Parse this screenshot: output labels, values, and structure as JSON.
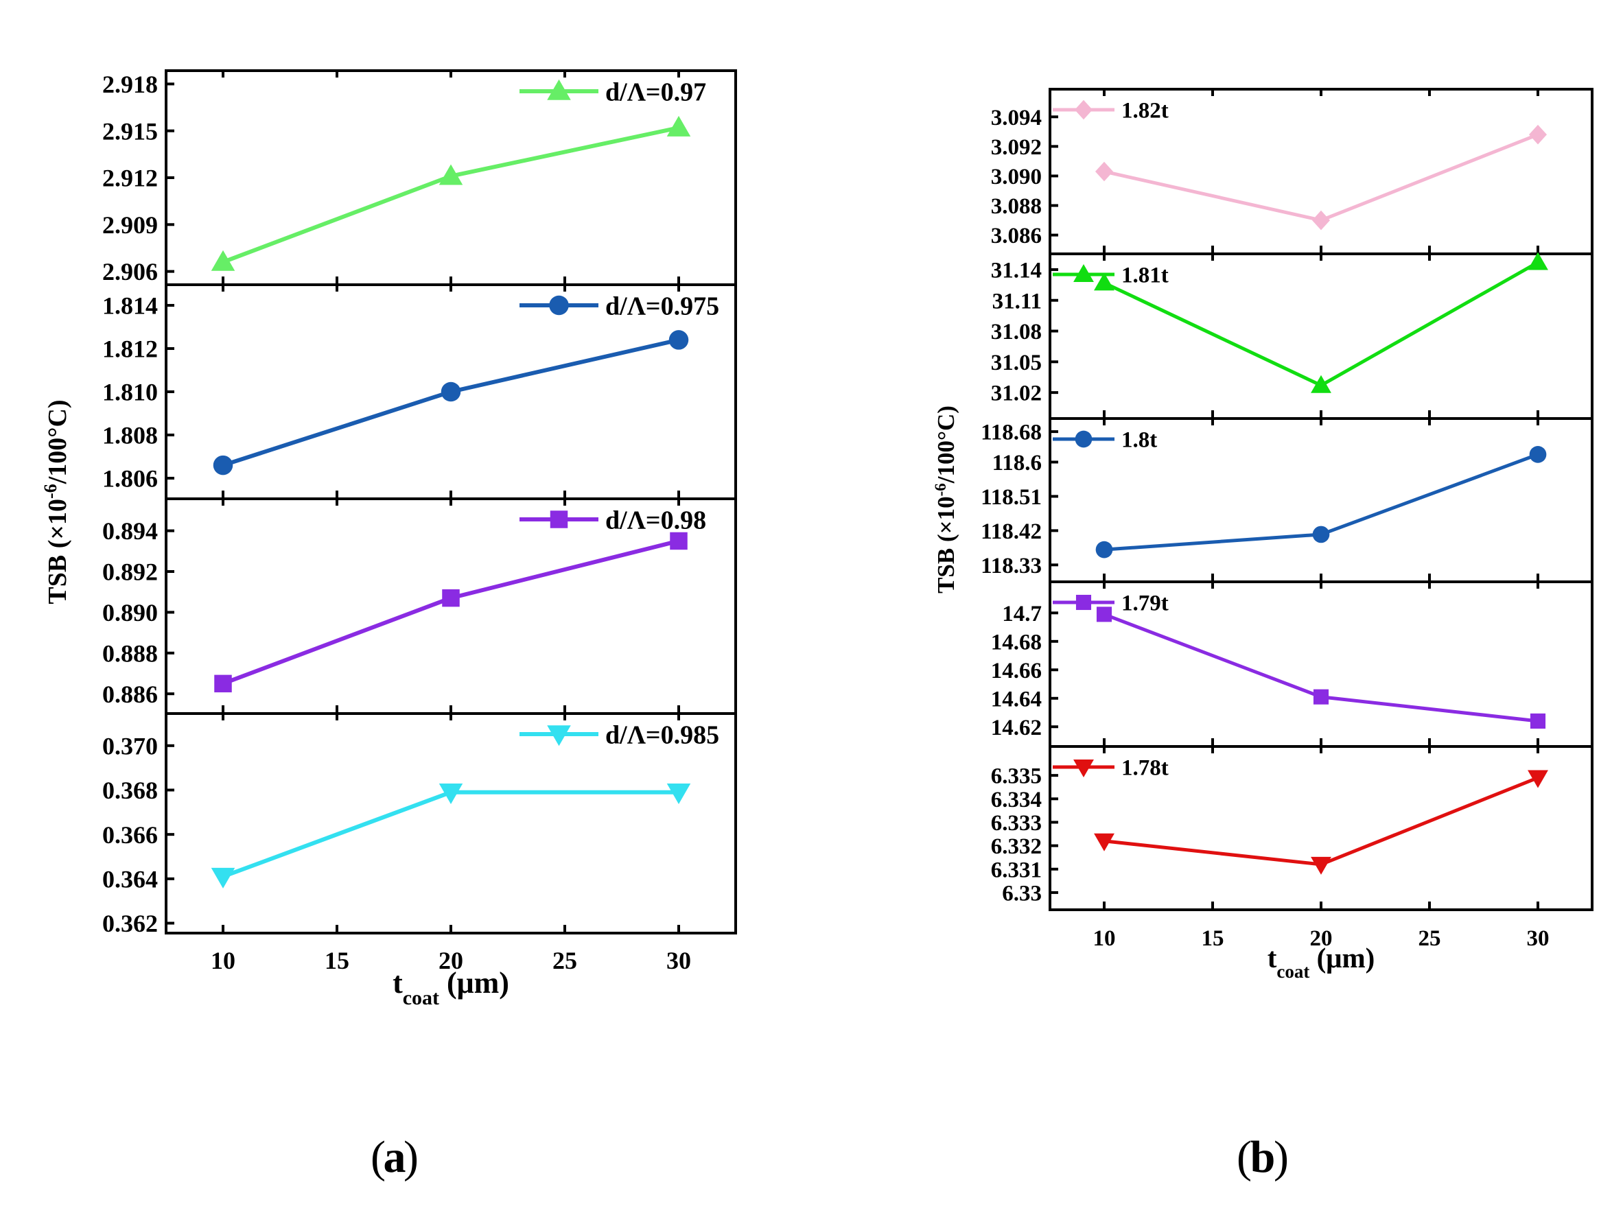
{
  "panel_labels": {
    "a": "a",
    "b": "b"
  },
  "chart_data": [
    {
      "id": "a",
      "type": "line",
      "ylabel": "TSB (×10",
      "ylabel_sup": "-6",
      "ylabel_tail": "/100°C)",
      "xlabel": "t",
      "xlabel_sub": "coat",
      "xlabel_tail": " (μm)",
      "xlim": [
        7.5,
        32.5
      ],
      "xticks": [
        10,
        15,
        20,
        25,
        30
      ],
      "xtick_labels": [
        "10",
        "15",
        "20",
        "25",
        "30"
      ],
      "x": [
        10,
        20,
        30
      ],
      "series": [
        {
          "name": "d/Λ=0.97",
          "values": [
            2.9066,
            2.9121,
            2.9152
          ],
          "color": "#66ee66",
          "marker": "triangle-up",
          "ylim": [
            2.9055,
            2.9185
          ],
          "yticks": [
            2.906,
            2.909,
            2.912,
            2.915,
            2.918
          ],
          "ytick_labels": [
            "2.906",
            "2.909",
            "2.912",
            "2.915",
            "2.918"
          ]
        },
        {
          "name": "d/Λ=0.975",
          "values": [
            1.8066,
            1.81,
            1.8124
          ],
          "color": "#1a5cb0",
          "marker": "circle",
          "ylim": [
            1.8053,
            1.8147
          ],
          "yticks": [
            1.806,
            1.808,
            1.81,
            1.812,
            1.814
          ],
          "ytick_labels": [
            "1.806",
            "1.808",
            "1.810",
            "1.812",
            "1.814"
          ]
        },
        {
          "name": "d/Λ=0.98",
          "values": [
            0.8865,
            0.8907,
            0.8935
          ],
          "color": "#8a2be2",
          "marker": "square",
          "ylim": [
            0.8853,
            0.8953
          ],
          "yticks": [
            0.886,
            0.888,
            0.89,
            0.892,
            0.894
          ],
          "ytick_labels": [
            "0.886",
            "0.888",
            "0.890",
            "0.892",
            "0.894"
          ]
        },
        {
          "name": "d/Λ=0.985",
          "values": [
            0.3641,
            0.3679,
            0.3679
          ],
          "color": "#33e0f0",
          "marker": "triangle-down",
          "ylim": [
            0.3618,
            0.3712
          ],
          "yticks": [
            0.362,
            0.364,
            0.366,
            0.368,
            0.37
          ],
          "ytick_labels": [
            "0.362",
            "0.364",
            "0.366",
            "0.368",
            "0.370"
          ]
        }
      ]
    },
    {
      "id": "b",
      "type": "line",
      "ylabel": "TSB (×10",
      "ylabel_sup": "-6",
      "ylabel_tail": "/100°C)",
      "xlabel": "t",
      "xlabel_sub": "coat",
      "xlabel_tail": " (μm)",
      "xlim": [
        7.5,
        32.5
      ],
      "xticks": [
        10,
        15,
        20,
        25,
        30
      ],
      "xtick_labels": [
        "10",
        "15",
        "20",
        "25",
        "30"
      ],
      "x": [
        10,
        20,
        30
      ],
      "series": [
        {
          "name": "1.82t",
          "values": [
            3.0903,
            3.087,
            3.0928
          ],
          "color": "#f4b6d2",
          "marker": "diamond",
          "ylim": [
            3.0851,
            3.0955
          ],
          "yticks": [
            3.086,
            3.088,
            3.09,
            3.092,
            3.094
          ],
          "ytick_labels": [
            "3.086",
            "3.088",
            "3.090",
            "3.092",
            "3.094"
          ]
        },
        {
          "name": "1.81t",
          "values": [
            31.127,
            31.027,
            31.147
          ],
          "color": "#11dd11",
          "marker": "triangle-up",
          "ylim": [
            31.0,
            31.15
          ],
          "yticks": [
            31.02,
            31.05,
            31.08,
            31.11,
            31.14
          ],
          "ytick_labels": [
            "31.02",
            "31.05",
            "31.08",
            "31.11",
            "31.14"
          ]
        },
        {
          "name": "1.8t",
          "values": [
            118.37,
            118.41,
            118.62
          ],
          "color": "#1a5cb0",
          "marker": "circle",
          "ylim": [
            118.3,
            118.7
          ],
          "yticks": [
            118.33,
            118.42,
            118.51,
            118.6,
            118.68
          ],
          "ytick_labels": [
            "118.33",
            "118.42",
            "118.51",
            "118.6",
            "118.68"
          ]
        },
        {
          "name": "1.79t",
          "values": [
            14.699,
            14.641,
            14.624
          ],
          "color": "#8a2be2",
          "marker": "square",
          "ylim": [
            14.61,
            14.718
          ],
          "yticks": [
            14.62,
            14.64,
            14.66,
            14.68,
            14.7
          ],
          "ytick_labels": [
            "14.62",
            "14.64",
            "14.66",
            "14.68",
            "14.7"
          ]
        },
        {
          "name": "1.78t",
          "values": [
            6.3322,
            6.3312,
            6.3349
          ],
          "color": "#e01010",
          "marker": "triangle-down",
          "ylim": [
            6.3295,
            6.336
          ],
          "yticks": [
            6.33,
            6.331,
            6.332,
            6.333,
            6.334,
            6.335
          ],
          "ytick_labels": [
            "6.33",
            "6.331",
            "6.332",
            "6.333",
            "6.334",
            "6.335"
          ]
        }
      ]
    }
  ]
}
